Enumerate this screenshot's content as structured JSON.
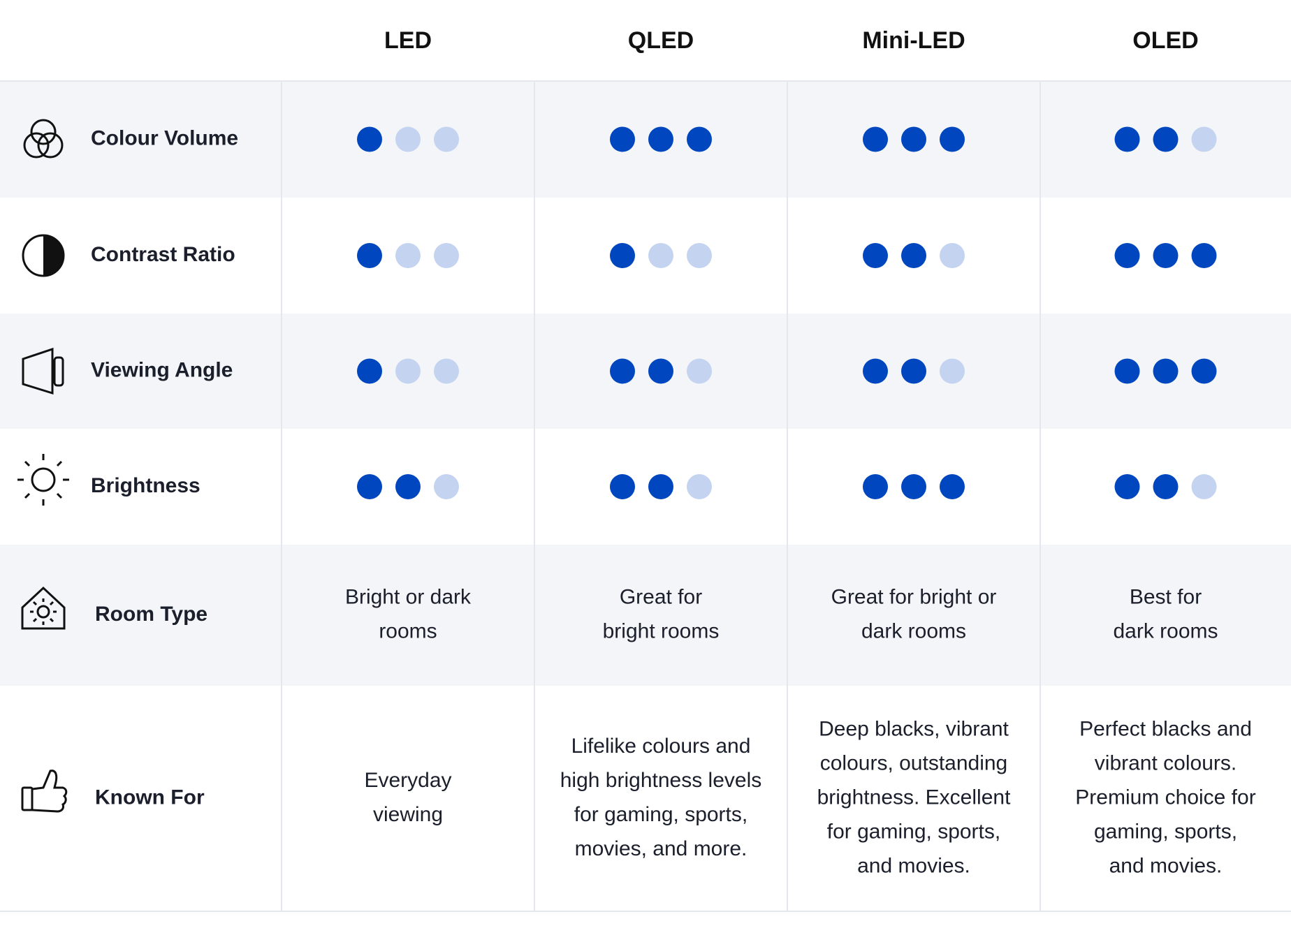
{
  "columns": [
    "LED",
    "QLED",
    "Mini-LED",
    "OLED"
  ],
  "rating_scale": 3,
  "rows": [
    {
      "label": "Colour Volume",
      "ratings": [
        1,
        3,
        3,
        2
      ]
    },
    {
      "label": "Contrast Ratio",
      "ratings": [
        1,
        1,
        2,
        3
      ]
    },
    {
      "label": "Viewing Angle",
      "ratings": [
        1,
        2,
        2,
        3
      ]
    },
    {
      "label": "Brightness",
      "ratings": [
        2,
        2,
        3,
        2
      ]
    },
    {
      "label": "Room Type",
      "texts": [
        [
          "Bright or dark",
          "rooms"
        ],
        [
          "Great for",
          "bright rooms"
        ],
        [
          "Great for bright or",
          "dark rooms"
        ],
        [
          "Best for",
          "dark rooms"
        ]
      ]
    },
    {
      "label": "Known For",
      "texts": [
        [
          "Everyday",
          "viewing"
        ],
        [
          "Lifelike colours and",
          "high brightness levels",
          "for gaming, sports,",
          "movies, and more."
        ],
        [
          "Deep blacks, vibrant",
          "colours, outstanding",
          "brightness. Excellent",
          "for gaming, sports,",
          "and movies."
        ],
        [
          "Perfect blacks and",
          "vibrant colours.",
          "Premium choice for",
          "gaming, sports,",
          "and movies."
        ]
      ]
    }
  ]
}
